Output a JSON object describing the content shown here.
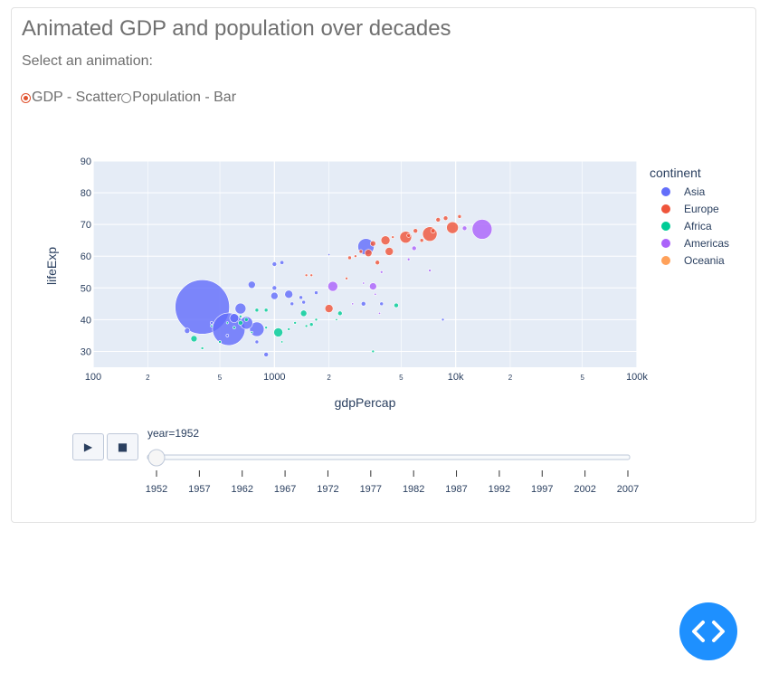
{
  "page": {
    "title": "Animated GDP and population over decades",
    "subtitle": "Select an animation:",
    "radio_options": [
      {
        "label": "GDP - Scatter",
        "checked": true
      },
      {
        "label": "Population - Bar",
        "checked": false
      }
    ]
  },
  "controls": {
    "play_icon": "▶",
    "stop_icon": "■",
    "slider_label": "year=1952",
    "slider_ticks": [
      "1952",
      "1957",
      "1962",
      "1967",
      "1972",
      "1977",
      "1982",
      "1987",
      "1992",
      "1997",
      "2002",
      "2007"
    ],
    "slider_value_index": 0
  },
  "colors": {
    "Asia": "#636efa",
    "Europe": "#ef553b",
    "Africa": "#00cc96",
    "Americas": "#ab63fa",
    "Oceania": "#ffa15a",
    "plot_bg": "#e5ecf6",
    "accent": "#e0522e",
    "fab": "#1e90ff"
  },
  "icons": {
    "fab": "code-brackets-icon"
  },
  "chart_data": {
    "type": "scatter",
    "xlabel": "gdpPercap",
    "ylabel": "lifeExp",
    "x_scale": "log",
    "xlim": [
      100,
      100000
    ],
    "ylim": [
      25,
      90
    ],
    "x_tick_labels": [
      "100",
      "2",
      "5",
      "1000",
      "2",
      "5",
      "10k",
      "2",
      "5",
      "100k"
    ],
    "y_ticks": [
      30,
      40,
      50,
      60,
      70,
      80,
      90
    ],
    "legend_title": "continent",
    "legend_position": "right",
    "grid": true,
    "series": [
      {
        "name": "Asia",
        "points": [
          [
            400,
            44,
            30
          ],
          [
            560,
            37,
            18
          ],
          [
            3200,
            63,
            9
          ],
          [
            800,
            37,
            8
          ],
          [
            700,
            39,
            7
          ],
          [
            650,
            43.5,
            6
          ],
          [
            1200,
            48,
            4.5
          ],
          [
            1000,
            47.5,
            4
          ],
          [
            750,
            51,
            4
          ],
          [
            600,
            40.5,
            5
          ],
          [
            330,
            36.5,
            3
          ],
          [
            1000,
            50,
            2.5
          ],
          [
            1100,
            58,
            2.2
          ],
          [
            1000,
            57.5,
            2.5
          ],
          [
            1400,
            47,
            2
          ],
          [
            1450,
            45.5,
            2
          ],
          [
            3100,
            45,
            2.5
          ],
          [
            3900,
            45,
            2
          ],
          [
            8500,
            40,
            1.5
          ],
          [
            2000,
            60.5,
            1.2
          ],
          [
            900,
            29,
            2.5
          ],
          [
            450,
            39,
            1.5
          ],
          [
            800,
            33,
            2
          ],
          [
            550,
            35,
            1.5
          ],
          [
            1700,
            48.5,
            2
          ],
          [
            1250,
            45,
            2
          ]
        ]
      },
      {
        "name": "Europe",
        "points": [
          [
            7200,
            67,
            8
          ],
          [
            5300,
            66,
            6.5
          ],
          [
            9600,
            69,
            6.5
          ],
          [
            4100,
            65,
            5
          ],
          [
            4300,
            61.5,
            4.5
          ],
          [
            2000,
            43.5,
            4.5
          ],
          [
            3300,
            61,
            4
          ],
          [
            3500,
            64,
            3
          ],
          [
            3700,
            58,
            2.5
          ],
          [
            5500,
            66.5,
            2
          ],
          [
            6000,
            68,
            2.5
          ],
          [
            6500,
            65,
            2
          ],
          [
            7500,
            68,
            2.5
          ],
          [
            8000,
            71.5,
            2.5
          ],
          [
            8800,
            72,
            2.5
          ],
          [
            10500,
            72.5,
            2
          ],
          [
            2600,
            59.5,
            2
          ],
          [
            3000,
            61.5,
            2
          ],
          [
            2500,
            53,
            1.5
          ],
          [
            4500,
            66,
            1.5
          ],
          [
            2800,
            60,
            1.5
          ],
          [
            1600,
            54,
            1.5
          ],
          [
            1500,
            54,
            1.5
          ]
        ]
      },
      {
        "name": "Africa",
        "points": [
          [
            1050,
            36,
            5
          ],
          [
            360,
            34,
            3.5
          ],
          [
            1450,
            42,
            3.5
          ],
          [
            4700,
            44.5,
            2.5
          ],
          [
            2300,
            42,
            2.5
          ],
          [
            650,
            39,
            2.5
          ],
          [
            700,
            40,
            2
          ],
          [
            1600,
            38.5,
            2
          ],
          [
            800,
            43,
            2
          ],
          [
            900,
            43,
            2
          ],
          [
            1300,
            39,
            1.5
          ],
          [
            1500,
            38,
            1.5
          ],
          [
            400,
            31,
            1.5
          ],
          [
            500,
            33,
            1.5
          ],
          [
            650,
            41,
            1.5
          ],
          [
            600,
            37.5,
            1.5
          ],
          [
            1200,
            37,
            1.5
          ],
          [
            900,
            37.5,
            1.5
          ],
          [
            1700,
            40,
            1.5
          ],
          [
            3500,
            30,
            1.5
          ],
          [
            2200,
            40,
            1.2
          ],
          [
            1100,
            33,
            1.2
          ],
          [
            750,
            36,
            1.2
          ],
          [
            450,
            38,
            1.2
          ],
          [
            550,
            39,
            1.2
          ]
        ]
      },
      {
        "name": "Americas",
        "points": [
          [
            13990,
            68.5,
            11
          ],
          [
            2100,
            50.5,
            5.5
          ],
          [
            3500,
            50.5,
            4
          ],
          [
            5900,
            62.5,
            2.5
          ],
          [
            11200,
            68.8,
            2.5
          ],
          [
            7200,
            55.5,
            1.5
          ],
          [
            5500,
            59,
            1.5
          ],
          [
            3900,
            55,
            1.5
          ],
          [
            3600,
            48,
            1.2
          ],
          [
            2700,
            45,
            1.2
          ],
          [
            3100,
            51.5,
            1.2
          ],
          [
            3800,
            42,
            1.2
          ]
        ]
      },
      {
        "name": "Oceania",
        "points": []
      }
    ]
  }
}
